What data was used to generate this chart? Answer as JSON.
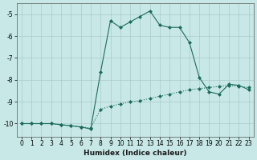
{
  "xlabel": "Humidex (Indice chaleur)",
  "background_color": "#c8e8e8",
  "grid_color": "#aacaca",
  "line_color": "#1a6b5a",
  "xlim": [
    -0.5,
    23.5
  ],
  "ylim": [
    -10.6,
    -4.5
  ],
  "yticks": [
    -10,
    -9,
    -8,
    -7,
    -6,
    -5
  ],
  "xticks": [
    0,
    1,
    2,
    3,
    4,
    5,
    6,
    7,
    8,
    9,
    10,
    11,
    12,
    13,
    14,
    15,
    16,
    17,
    18,
    19,
    20,
    21,
    22,
    23
  ],
  "line1_x": [
    0,
    1,
    2,
    3,
    4,
    5,
    6,
    7,
    8,
    9,
    10,
    11,
    12,
    13,
    14,
    15,
    16,
    17,
    18,
    19,
    20,
    21,
    22,
    23
  ],
  "line1_y": [
    -10.0,
    -10.0,
    -10.0,
    -10.0,
    -10.05,
    -10.1,
    -10.15,
    -10.2,
    -9.35,
    -9.2,
    -9.1,
    -9.0,
    -8.95,
    -8.85,
    -8.75,
    -8.65,
    -8.55,
    -8.45,
    -8.4,
    -8.35,
    -8.3,
    -8.25,
    -8.3,
    -8.35
  ],
  "line2_x": [
    0,
    1,
    2,
    3,
    4,
    5,
    6,
    7,
    8,
    9,
    10,
    11,
    12,
    13,
    14,
    15,
    16,
    17,
    18,
    19,
    20,
    21,
    22,
    23
  ],
  "line2_y": [
    -10.0,
    -10.0,
    -10.0,
    -10.0,
    -10.05,
    -10.1,
    -10.15,
    -10.25,
    -7.65,
    -5.3,
    -5.6,
    -5.35,
    -5.1,
    -4.85,
    -5.5,
    -5.6,
    -5.6,
    -6.3,
    -7.9,
    -8.55,
    -8.65,
    -8.2,
    -8.25,
    -8.45
  ]
}
